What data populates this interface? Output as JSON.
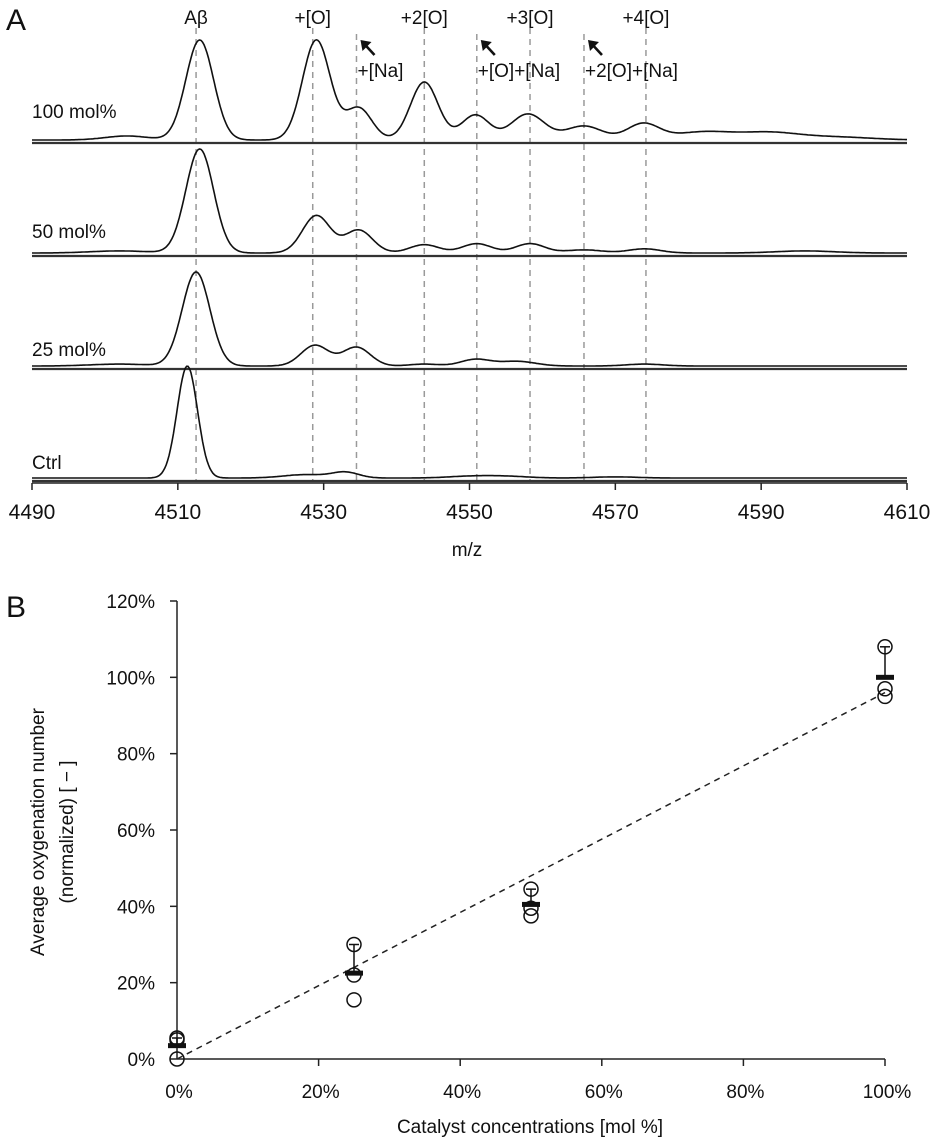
{
  "chart_data": [
    {
      "panel": "A",
      "type": "line",
      "title": "",
      "xlabel": "m/z",
      "ylabel": "",
      "xlim": [
        4490,
        4610
      ],
      "x_ticks": [
        4490,
        4510,
        4530,
        4550,
        4570,
        4590,
        4610
      ],
      "x_tick_labels": [
        "4490",
        "4510",
        "4530",
        "4550",
        "4570",
        "4590",
        "4610"
      ],
      "grid": false,
      "stacked_traces": true,
      "reference_lines": [
        {
          "name": "Aβ",
          "mz": 4512.5,
          "label_row": "top"
        },
        {
          "name": "+[O]",
          "mz": 4528.5,
          "label_row": "top"
        },
        {
          "name": "+[Na]",
          "mz": 4534.5,
          "label_row": "arrow"
        },
        {
          "name": "+2[O]",
          "mz": 4543.8,
          "label_row": "top"
        },
        {
          "name": "+[O]+[Na]",
          "mz": 4551.0,
          "label_row": "arrow"
        },
        {
          "name": "+3[O]",
          "mz": 4558.3,
          "label_row": "top"
        },
        {
          "name": "+2[O]+[Na]",
          "mz": 4565.7,
          "label_row": "arrow"
        },
        {
          "name": "+4[O]",
          "mz": 4574.2,
          "label_row": "top"
        }
      ],
      "series": [
        {
          "name": "100 mol%",
          "baseline_level": 0.0,
          "peaks": [
            {
              "mz": 4503,
              "height": 0.04,
              "width": 3.0
            },
            {
              "mz": 4513.0,
              "height": 1.0,
              "width": 1.9
            },
            {
              "mz": 4529.0,
              "height": 1.0,
              "width": 1.9
            },
            {
              "mz": 4534.8,
              "height": 0.32,
              "width": 1.8
            },
            {
              "mz": 4543.8,
              "height": 0.58,
              "width": 1.9
            },
            {
              "mz": 4550.8,
              "height": 0.25,
              "width": 1.9
            },
            {
              "mz": 4558.0,
              "height": 0.26,
              "width": 2.3
            },
            {
              "mz": 4565.7,
              "height": 0.14,
              "width": 2.5
            },
            {
              "mz": 4573.8,
              "height": 0.16,
              "width": 2.2
            },
            {
              "mz": 4582,
              "height": 0.08,
              "width": 4.0
            },
            {
              "mz": 4591,
              "height": 0.07,
              "width": 4.0
            },
            {
              "mz": 4600,
              "height": 0.03,
              "width": 5.0
            }
          ]
        },
        {
          "name": "50 mol%",
          "peaks": [
            {
              "mz": 4502,
              "height": 0.02,
              "width": 4.0
            },
            {
              "mz": 4513.0,
              "height": 1.0,
              "width": 1.9
            },
            {
              "mz": 4529.0,
              "height": 0.36,
              "width": 1.9
            },
            {
              "mz": 4534.8,
              "height": 0.22,
              "width": 1.9
            },
            {
              "mz": 4543.8,
              "height": 0.08,
              "width": 2.0
            },
            {
              "mz": 4551.0,
              "height": 0.09,
              "width": 2.0
            },
            {
              "mz": 4558.3,
              "height": 0.09,
              "width": 2.0
            },
            {
              "mz": 4565.7,
              "height": 0.03,
              "width": 2.5
            },
            {
              "mz": 4574.0,
              "height": 0.04,
              "width": 2.2
            },
            {
              "mz": 4596,
              "height": 0.02,
              "width": 4.0
            }
          ]
        },
        {
          "name": "25 mol%",
          "peaks": [
            {
              "mz": 4502,
              "height": 0.02,
              "width": 4.0
            },
            {
              "mz": 4512.5,
              "height": 1.0,
              "width": 1.9
            },
            {
              "mz": 4528.8,
              "height": 0.22,
              "width": 1.9
            },
            {
              "mz": 4534.5,
              "height": 0.2,
              "width": 1.9
            },
            {
              "mz": 4543.8,
              "height": 0.02,
              "width": 2.0
            },
            {
              "mz": 4550.8,
              "height": 0.07,
              "width": 2.0
            },
            {
              "mz": 4556.5,
              "height": 0.05,
              "width": 2.5
            },
            {
              "mz": 4574.0,
              "height": 0.02,
              "width": 2.5
            }
          ]
        },
        {
          "name": "Ctrl",
          "peaks": [
            {
              "mz": 4511.3,
              "height": 1.0,
              "width": 1.4
            },
            {
              "mz": 4527.5,
              "height": 0.03,
              "width": 3.0
            },
            {
              "mz": 4533.0,
              "height": 0.05,
              "width": 1.8
            },
            {
              "mz": 4550.0,
              "height": 0.015,
              "width": 3.0
            },
            {
              "mz": 4555.0,
              "height": 0.015,
              "width": 3.0
            },
            {
              "mz": 4570.0,
              "height": 0.01,
              "width": 3.0
            }
          ]
        }
      ]
    },
    {
      "panel": "B",
      "type": "scatter",
      "title": "",
      "xlabel": "Catalyst concentrations [mol %]",
      "ylabel_lines": [
        "Average oxygenation number",
        "(normalized) [ − ]"
      ],
      "xlim": [
        0,
        100
      ],
      "ylim": [
        0,
        120
      ],
      "x_ticks": [
        0,
        20,
        40,
        60,
        80,
        100
      ],
      "x_tick_labels": [
        "0%",
        "20%",
        "40%",
        "60%",
        "80%",
        "100%"
      ],
      "y_ticks": [
        0,
        20,
        40,
        60,
        80,
        100,
        120
      ],
      "y_tick_labels": [
        "0%",
        "20%",
        "40%",
        "60%",
        "80%",
        "100%",
        "120%"
      ],
      "grid": false,
      "legend": "none",
      "groups": [
        {
          "x": 0,
          "replicates": [
            0.0,
            5.5,
            5.0
          ],
          "mean": 3.5,
          "error_upper": 5.5
        },
        {
          "x": 25,
          "replicates": [
            30.0,
            22.0,
            15.5
          ],
          "mean": 22.5,
          "error_upper": 30.0
        },
        {
          "x": 50,
          "replicates": [
            44.5,
            39.5,
            37.5
          ],
          "mean": 40.5,
          "error_upper": 44.5
        },
        {
          "x": 100,
          "replicates": [
            108.0,
            97.0,
            95.0
          ],
          "mean": 100.0,
          "error_upper": 108.0
        }
      ],
      "fit_line": {
        "style": "dashed",
        "x": [
          0,
          100
        ],
        "y": [
          0,
          96
        ]
      }
    }
  ]
}
